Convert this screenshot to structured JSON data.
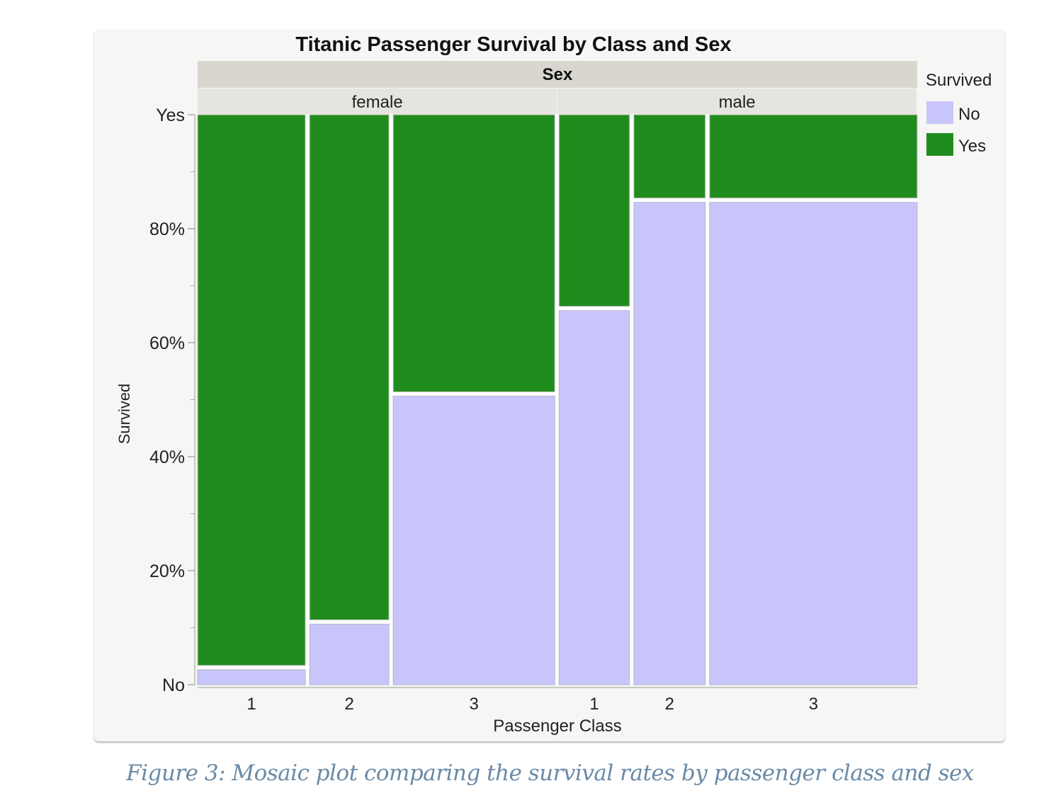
{
  "chart_data": {
    "type": "mosaic",
    "title": "Titanic Passenger Survival by Class and Sex",
    "facet_label": "Sex",
    "facets": [
      "female",
      "male"
    ],
    "xlabel": "Passenger Class",
    "ylabel": "Survived",
    "y_ticks": [
      "No",
      "20%",
      "40%",
      "60%",
      "80%",
      "Yes"
    ],
    "ylim": [
      0,
      1
    ],
    "legend": {
      "title": "Survived",
      "placement": "right",
      "entries": [
        {
          "label": "No",
          "color": "#c8c5fa"
        },
        {
          "label": "Yes",
          "color": "#218c1e"
        }
      ]
    },
    "cells": [
      {
        "sex": "female",
        "class": "1",
        "share_of_passengers": 0.11,
        "survived_yes": 0.97,
        "survived_no": 0.03
      },
      {
        "sex": "female",
        "class": "2",
        "share_of_passengers": 0.081,
        "survived_yes": 0.89,
        "survived_no": 0.11
      },
      {
        "sex": "female",
        "class": "3",
        "share_of_passengers": 0.165,
        "survived_yes": 0.49,
        "survived_no": 0.51
      },
      {
        "sex": "male",
        "class": "1",
        "share_of_passengers": 0.072,
        "survived_yes": 0.34,
        "survived_no": 0.66
      },
      {
        "sex": "male",
        "class": "2",
        "share_of_passengers": 0.073,
        "survived_yes": 0.15,
        "survived_no": 0.85
      },
      {
        "sex": "male",
        "class": "3",
        "share_of_passengers": 0.212,
        "survived_yes": 0.15,
        "survived_no": 0.85
      }
    ],
    "grid": false
  },
  "caption": "Figure 3: Mosaic plot comparing the survival rates by passenger class and sex"
}
